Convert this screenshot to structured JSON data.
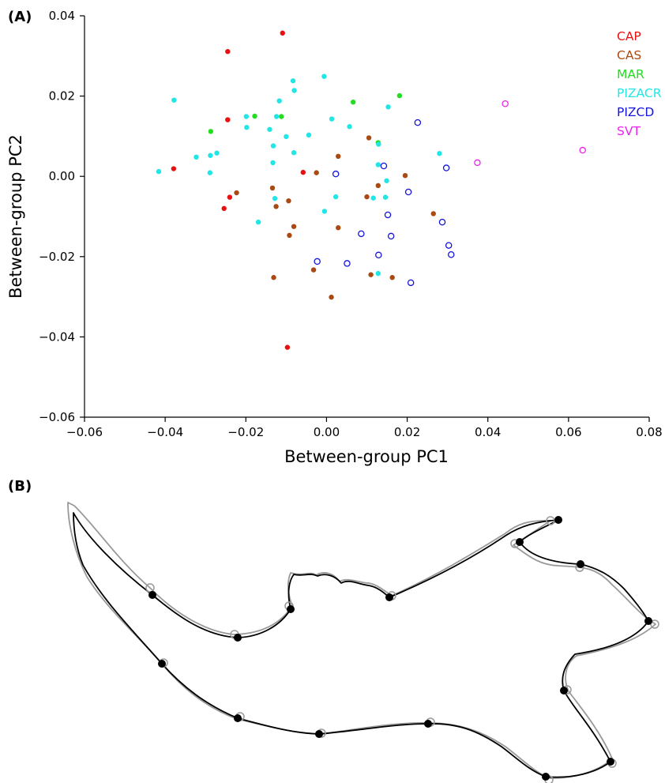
{
  "panel_labels": {
    "a": "(A)",
    "b": "(B)"
  },
  "chart_data": {
    "type": "scatter",
    "xlabel": "Between-group PC1",
    "ylabel": "Between-group PC2",
    "xlim": [
      -0.06,
      0.08
    ],
    "ylim": [
      -0.06,
      0.04
    ],
    "x_ticks": [
      -0.06,
      -0.04,
      -0.02,
      0.0,
      0.02,
      0.04,
      0.06,
      0.08
    ],
    "x_tick_labels": [
      "−0.06",
      "−0.04",
      "−0.02",
      "0.00",
      "0.02",
      "0.04",
      "0.06",
      "0.08"
    ],
    "y_ticks": [
      -0.06,
      -0.04,
      -0.02,
      0.0,
      0.02,
      0.04
    ],
    "y_tick_labels": [
      "−0.06",
      "−0.04",
      "−0.02",
      "0.00",
      "0.02",
      "0.04"
    ],
    "grid": false,
    "legend_position": "top-right",
    "series": [
      {
        "name": "CAP",
        "color": "#e81010",
        "marker": "filled",
        "points": [
          [
            -0.0109,
            0.0357
          ],
          [
            -0.0245,
            0.0311
          ],
          [
            -0.0245,
            0.0141
          ],
          [
            -0.0379,
            0.0019
          ],
          [
            -0.0058,
            0.001
          ],
          [
            -0.024,
            -0.0052
          ],
          [
            -0.0254,
            -0.008
          ],
          [
            -0.0097,
            -0.0426
          ]
        ]
      },
      {
        "name": "CAS",
        "color": "#a84a12",
        "marker": "filled",
        "points": [
          [
            0.0105,
            0.0096
          ],
          [
            0.0029,
            0.005
          ],
          [
            -0.0025,
            0.0009
          ],
          [
            0.0195,
            0.0002
          ],
          [
            -0.0134,
            -0.0029
          ],
          [
            0.0128,
            -0.0023
          ],
          [
            -0.0223,
            -0.0041
          ],
          [
            -0.0094,
            -0.0061
          ],
          [
            0.01,
            -0.0051
          ],
          [
            -0.0125,
            -0.0075
          ],
          [
            0.0265,
            -0.0093
          ],
          [
            -0.0081,
            -0.0125
          ],
          [
            0.0029,
            -0.0128
          ],
          [
            -0.0092,
            -0.0147
          ],
          [
            0.0163,
            -0.0252
          ],
          [
            0.011,
            -0.0245
          ],
          [
            -0.0131,
            -0.0252
          ],
          [
            -0.0032,
            -0.0233
          ],
          [
            0.0012,
            -0.0301
          ]
        ]
      },
      {
        "name": "MAR",
        "color": "#22dd22",
        "marker": "filled",
        "points": [
          [
            0.0066,
            0.0185
          ],
          [
            0.0181,
            0.0201
          ],
          [
            -0.0178,
            0.015
          ],
          [
            -0.0112,
            0.0149
          ],
          [
            -0.0287,
            0.0112
          ],
          [
            0.0128,
            0.0084
          ]
        ]
      },
      {
        "name": "PIZACR",
        "color": "#22e6e6",
        "marker": "filled",
        "points": [
          [
            -0.0378,
            0.019
          ],
          [
            -0.0083,
            0.0238
          ],
          [
            -0.0006,
            0.0249
          ],
          [
            -0.008,
            0.0214
          ],
          [
            -0.0117,
            0.0188
          ],
          [
            0.0153,
            0.0173
          ],
          [
            -0.0199,
            0.0149
          ],
          [
            -0.0124,
            0.0149
          ],
          [
            0.0013,
            0.0143
          ],
          [
            -0.0198,
            0.0122
          ],
          [
            -0.0141,
            0.0117
          ],
          [
            0.0057,
            0.0124
          ],
          [
            -0.01,
            0.0099
          ],
          [
            -0.0044,
            0.0103
          ],
          [
            -0.0132,
            0.0076
          ],
          [
            0.0129,
            0.008
          ],
          [
            -0.0081,
            0.0059
          ],
          [
            -0.0272,
            0.0058
          ],
          [
            -0.0288,
            0.0052
          ],
          [
            -0.0323,
            0.0048
          ],
          [
            0.028,
            0.0057
          ],
          [
            -0.0133,
            0.0034
          ],
          [
            0.0128,
            0.0029
          ],
          [
            -0.0416,
            0.0012
          ],
          [
            -0.0289,
            0.0009
          ],
          [
            0.0149,
            -0.0011
          ],
          [
            0.0023,
            -0.0051
          ],
          [
            0.0116,
            -0.0054
          ],
          [
            0.0146,
            -0.0052
          ],
          [
            -0.0128,
            -0.0055
          ],
          [
            -0.0005,
            -0.0087
          ],
          [
            -0.0169,
            -0.0114
          ],
          [
            0.0128,
            -0.0242
          ]
        ]
      },
      {
        "name": "PIZCD",
        "color": "#1414dd",
        "marker": "open",
        "points": [
          [
            0.0226,
            0.0134
          ],
          [
            0.0142,
            0.0026
          ],
          [
            0.0297,
            0.0021
          ],
          [
            0.0023,
            0.0006
          ],
          [
            0.0203,
            -0.0039
          ],
          [
            0.0152,
            -0.0096
          ],
          [
            0.0287,
            -0.0114
          ],
          [
            0.0086,
            -0.0143
          ],
          [
            0.016,
            -0.0149
          ],
          [
            0.0303,
            -0.0172
          ],
          [
            0.0309,
            -0.0195
          ],
          [
            0.0129,
            -0.0196
          ],
          [
            -0.0023,
            -0.0212
          ],
          [
            0.0051,
            -0.0217
          ],
          [
            0.0209,
            -0.0265
          ]
        ]
      },
      {
        "name": "SVT",
        "color": "#ee22ee",
        "marker": "open",
        "points": [
          [
            0.0443,
            0.0181
          ],
          [
            0.0635,
            0.0065
          ],
          [
            0.0374,
            0.0034
          ]
        ]
      }
    ]
  },
  "outline_panel": {
    "stroke_colors": {
      "mean_shape": "#000000",
      "group_shape": "#999999"
    }
  }
}
